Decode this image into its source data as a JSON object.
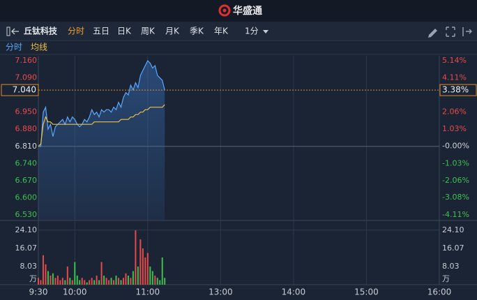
{
  "ui": {
    "logo": "华盛通",
    "stock": "丘钛科技",
    "periods": [
      "分时",
      "五日",
      "日K",
      "周K",
      "月K",
      "季K",
      "年K"
    ],
    "active_period": 0,
    "interval": "1分"
  },
  "chart_data": [
    {
      "type": "line",
      "x": [
        "9:30",
        "9:32",
        "9:34",
        "9:36",
        "9:38",
        "9:40",
        "9:42",
        "9:44",
        "9:46",
        "9:48",
        "9:50",
        "9:52",
        "9:54",
        "9:56",
        "9:58",
        "10:00",
        "10:02",
        "10:04",
        "10:06",
        "10:08",
        "10:10",
        "10:12",
        "10:14",
        "10:16",
        "10:18",
        "10:20",
        "10:22",
        "10:24",
        "10:26",
        "10:28",
        "10:30",
        "10:32",
        "10:34",
        "10:36",
        "10:38",
        "10:40",
        "10:42",
        "10:44",
        "10:46",
        "10:48",
        "10:50",
        "10:52",
        "10:54",
        "10:56",
        "10:58",
        "11:00",
        "11:02",
        "11:04",
        "11:06",
        "11:08",
        "11:10",
        "11:12",
        "11:14"
      ],
      "xlim": [
        "9:30",
        "16:00"
      ],
      "series": [
        {
          "name": "分时",
          "color": "#5aa8ff",
          "values": [
            6.81,
            6.81,
            6.95,
            6.97,
            6.88,
            6.9,
            6.85,
            6.89,
            6.9,
            6.91,
            6.92,
            6.9,
            6.93,
            6.91,
            6.93,
            6.92,
            6.9,
            6.89,
            6.9,
            6.92,
            6.91,
            6.93,
            6.96,
            6.94,
            6.95,
            6.93,
            6.96,
            6.95,
            6.96,
            6.96,
            6.95,
            6.97,
            6.96,
            6.99,
            6.97,
            7.01,
            7.03,
            7.02,
            7.06,
            7.04,
            7.07,
            7.05,
            7.1,
            7.12,
            7.14,
            7.16,
            7.15,
            7.13,
            7.14,
            7.1,
            7.09,
            7.08,
            7.04
          ]
        },
        {
          "name": "均线",
          "color": "#e8c04a",
          "values": [
            6.81,
            6.82,
            6.9,
            6.93,
            6.91,
            6.91,
            6.9,
            6.9,
            6.9,
            6.9,
            6.9,
            6.9,
            6.9,
            6.9,
            6.9,
            6.9,
            6.9,
            6.9,
            6.9,
            6.9,
            6.9,
            6.9,
            6.9,
            6.91,
            6.91,
            6.91,
            6.91,
            6.91,
            6.91,
            6.91,
            6.91,
            6.91,
            6.91,
            6.91,
            6.92,
            6.92,
            6.92,
            6.92,
            6.93,
            6.93,
            6.94,
            6.94,
            6.95,
            6.95,
            6.96,
            6.96,
            6.97,
            6.97,
            6.97,
            6.97,
            6.97,
            6.97,
            6.98
          ]
        }
      ],
      "ylim": [
        6.51,
        7.18
      ],
      "yticks": [
        {
          "value": 7.16,
          "label": "7.160"
        },
        {
          "value": 7.09,
          "label": "7.090"
        },
        {
          "value": 6.95,
          "label": "6.950"
        },
        {
          "value": 6.88,
          "label": "6.880"
        },
        {
          "value": 6.81,
          "label": "6.810"
        },
        {
          "value": 6.74,
          "label": "6.740"
        },
        {
          "value": 6.67,
          "label": "6.670"
        },
        {
          "value": 6.6,
          "label": "6.600"
        },
        {
          "value": 6.53,
          "label": "6.530"
        }
      ],
      "y2lim": [
        -4.41,
        5.43
      ],
      "y2ticks": [
        {
          "value": 5.14,
          "label": "5.14%"
        },
        {
          "value": 4.11,
          "label": "4.11%"
        },
        {
          "value": 2.06,
          "label": "2.06%"
        },
        {
          "value": 1.03,
          "label": "1.03%"
        },
        {
          "value": 0,
          "label": "-0.00%"
        },
        {
          "value": -1.03,
          "label": "-1.03%"
        },
        {
          "value": -2.06,
          "label": "-2.06%"
        },
        {
          "value": -3.08,
          "label": "-3.08%"
        },
        {
          "value": -4.11,
          "label": "-4.11%"
        }
      ],
      "last_price": {
        "value": 7.04,
        "label": "7.040"
      },
      "last_change": {
        "value": 3.38,
        "label": "3.38%"
      }
    },
    {
      "type": "bar",
      "x": [
        "9:30",
        "9:32",
        "9:34",
        "9:36",
        "9:38",
        "9:40",
        "9:42",
        "9:44",
        "9:46",
        "9:48",
        "9:50",
        "9:52",
        "9:54",
        "9:56",
        "9:58",
        "10:00",
        "10:02",
        "10:04",
        "10:06",
        "10:08",
        "10:10",
        "10:12",
        "10:14",
        "10:16",
        "10:18",
        "10:20",
        "10:22",
        "10:24",
        "10:26",
        "10:28",
        "10:30",
        "10:32",
        "10:34",
        "10:36",
        "10:38",
        "10:40",
        "10:42",
        "10:44",
        "10:46",
        "10:48",
        "10:50",
        "10:52",
        "10:54",
        "10:56",
        "10:58",
        "11:00",
        "11:02",
        "11:04",
        "11:06",
        "11:08",
        "11:10",
        "11:12",
        "11:14"
      ],
      "xlim": [
        "9:30",
        "16:00"
      ],
      "xticks": [
        "9:30",
        "10:00",
        "11:00",
        "13:00",
        "14:00",
        "15:00",
        "16:00"
      ],
      "values": [
        3,
        2,
        13,
        9,
        6,
        4,
        5,
        3,
        4,
        2,
        3,
        2,
        8,
        3,
        2,
        10,
        4,
        2,
        3,
        2,
        1,
        2,
        3,
        2,
        4,
        2,
        10,
        4,
        3,
        2,
        3,
        2,
        4,
        3,
        2,
        3,
        5,
        4,
        3,
        6,
        24,
        8,
        20,
        16,
        12,
        14,
        8,
        6,
        4,
        3,
        2,
        12,
        3
      ],
      "up_color": "#e84a4a",
      "down_color": "#3cc050",
      "ylim": [
        0,
        26.5
      ],
      "yticks": [
        {
          "value": 24.1,
          "label": "24.10"
        },
        {
          "value": 16.07,
          "label": "16.07"
        },
        {
          "value": 8.03,
          "label": "8.03"
        }
      ],
      "unit": "万"
    }
  ]
}
